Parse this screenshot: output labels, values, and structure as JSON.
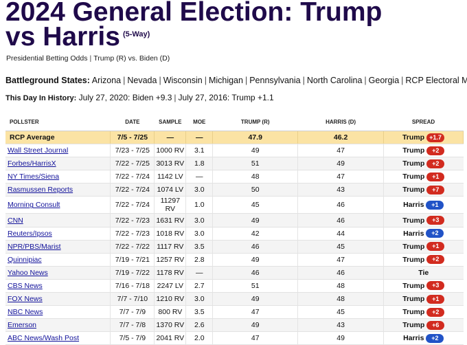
{
  "page": {
    "title_line1": "2024 General Election: Trump",
    "title_line2": "vs Harris",
    "title_suffix": "(5-Way)",
    "subnav": [
      "Presidential Betting Odds",
      "Trump (R) vs. Biden (D)"
    ],
    "battleground_label": "Battleground States:",
    "battleground_links": [
      "Arizona",
      "Nevada",
      "Wisconsin",
      "Michigan",
      "Pennsylvania",
      "North Carolina",
      "Georgia",
      "RCP Electoral Map"
    ],
    "history_label": "This Day In History:",
    "history_items": [
      "July 27, 2020: Biden +9.3",
      "July 27, 2016: Trump +1.1"
    ]
  },
  "table": {
    "headers": [
      "POLLSTER",
      "DATE",
      "SAMPLE",
      "MOE",
      "TRUMP (R)",
      "HARRIS (D)",
      "SPREAD"
    ],
    "average": {
      "pollster": "RCP Average",
      "date": "7/5 - 7/25",
      "sample": "—",
      "moe": "—",
      "trump": "47.9",
      "harris": "46.2",
      "spread_name": "Trump",
      "spread_badge": "+1.7",
      "party": "r"
    },
    "rows": [
      {
        "pollster": "Wall Street Journal",
        "date": "7/23 - 7/25",
        "sample": "1000 RV",
        "moe": "3.1",
        "trump": "49",
        "harris": "47",
        "spread_name": "Trump",
        "spread_badge": "+2",
        "party": "r"
      },
      {
        "pollster": "Forbes/HarrisX",
        "date": "7/22 - 7/25",
        "sample": "3013 RV",
        "moe": "1.8",
        "trump": "51",
        "harris": "49",
        "spread_name": "Trump",
        "spread_badge": "+2",
        "party": "r"
      },
      {
        "pollster": "NY Times/Siena",
        "date": "7/22 - 7/24",
        "sample": "1142 LV",
        "moe": "—",
        "trump": "48",
        "harris": "47",
        "spread_name": "Trump",
        "spread_badge": "+1",
        "party": "r"
      },
      {
        "pollster": "Rasmussen Reports",
        "date": "7/22 - 7/24",
        "sample": "1074 LV",
        "moe": "3.0",
        "trump": "50",
        "harris": "43",
        "spread_name": "Trump",
        "spread_badge": "+7",
        "party": "r"
      },
      {
        "pollster": "Morning Consult",
        "date": "7/22 - 7/24",
        "sample": "11297 RV",
        "moe": "1.0",
        "trump": "45",
        "harris": "46",
        "spread_name": "Harris",
        "spread_badge": "+1",
        "party": "d"
      },
      {
        "pollster": "CNN",
        "date": "7/22 - 7/23",
        "sample": "1631 RV",
        "moe": "3.0",
        "trump": "49",
        "harris": "46",
        "spread_name": "Trump",
        "spread_badge": "+3",
        "party": "r"
      },
      {
        "pollster": "Reuters/Ipsos",
        "date": "7/22 - 7/23",
        "sample": "1018 RV",
        "moe": "3.0",
        "trump": "42",
        "harris": "44",
        "spread_name": "Harris",
        "spread_badge": "+2",
        "party": "d"
      },
      {
        "pollster": "NPR/PBS/Marist",
        "date": "7/22 - 7/22",
        "sample": "1117 RV",
        "moe": "3.5",
        "trump": "46",
        "harris": "45",
        "spread_name": "Trump",
        "spread_badge": "+1",
        "party": "r"
      },
      {
        "pollster": "Quinnipiac",
        "date": "7/19 - 7/21",
        "sample": "1257 RV",
        "moe": "2.8",
        "trump": "49",
        "harris": "47",
        "spread_name": "Trump",
        "spread_badge": "+2",
        "party": "r"
      },
      {
        "pollster": "Yahoo News",
        "date": "7/19 - 7/22",
        "sample": "1178 RV",
        "moe": "—",
        "trump": "46",
        "harris": "46",
        "spread_name": "Tie",
        "spread_badge": "",
        "party": ""
      },
      {
        "pollster": "CBS News",
        "date": "7/16 - 7/18",
        "sample": "2247 LV",
        "moe": "2.7",
        "trump": "51",
        "harris": "48",
        "spread_name": "Trump",
        "spread_badge": "+3",
        "party": "r"
      },
      {
        "pollster": "FOX News",
        "date": "7/7 - 7/10",
        "sample": "1210 RV",
        "moe": "3.0",
        "trump": "49",
        "harris": "48",
        "spread_name": "Trump",
        "spread_badge": "+1",
        "party": "r"
      },
      {
        "pollster": "NBC News",
        "date": "7/7 - 7/9",
        "sample": "800 RV",
        "moe": "3.5",
        "trump": "47",
        "harris": "45",
        "spread_name": "Trump",
        "spread_badge": "+2",
        "party": "r"
      },
      {
        "pollster": "Emerson",
        "date": "7/7 - 7/8",
        "sample": "1370 RV",
        "moe": "2.6",
        "trump": "49",
        "harris": "43",
        "spread_name": "Trump",
        "spread_badge": "+6",
        "party": "r"
      },
      {
        "pollster": "ABC News/Wash Post",
        "date": "7/5 - 7/9",
        "sample": "2041 RV",
        "moe": "2.0",
        "trump": "47",
        "harris": "49",
        "spread_name": "Harris",
        "spread_badge": "+2",
        "party": "d"
      }
    ]
  },
  "colors": {
    "title": "#1f0a4a",
    "republican": "#d22b1f",
    "democrat": "#2153c7",
    "average_row": "#fbe3a4",
    "link": "#11119a"
  }
}
